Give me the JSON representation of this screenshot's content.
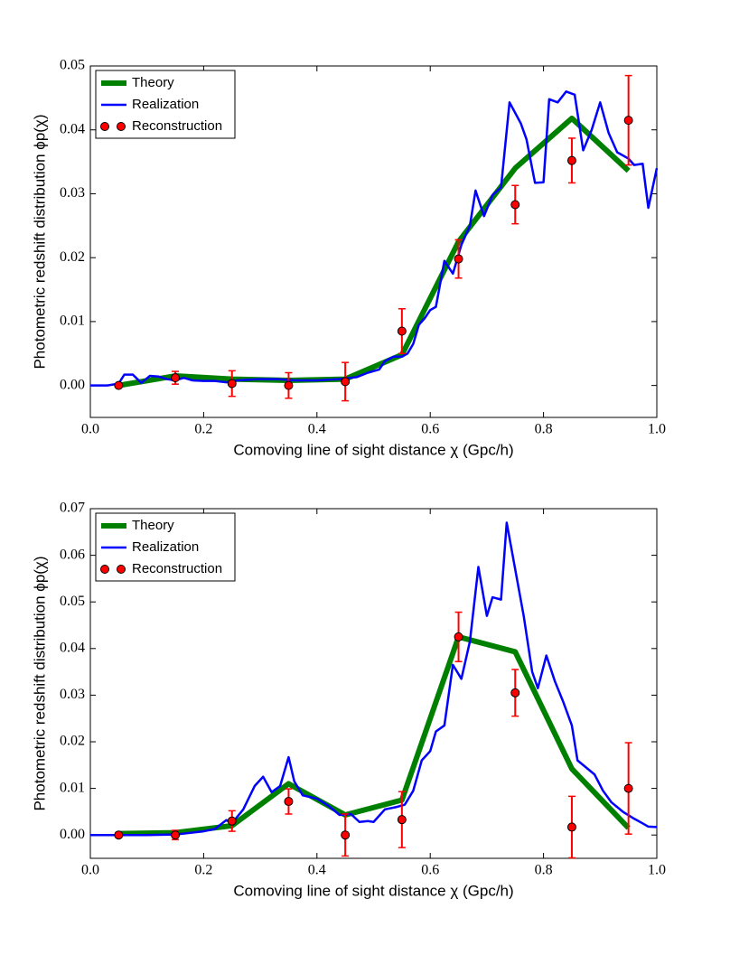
{
  "chart_data": [
    {
      "type": "line",
      "xlabel": "Comoving line of sight distance χ (Gpc/h)",
      "ylabel": "Photometric redshift distribution ϕp(χ)",
      "xlim": [
        0,
        1
      ],
      "ylim": [
        -0.005,
        0.05
      ],
      "xticks": [
        {
          "value": 0,
          "label": "0.0"
        },
        0.2,
        0.4,
        0.6,
        0.8,
        {
          "value": 1,
          "label": "1.0"
        }
      ],
      "yticks": [
        {
          "value": 0,
          "label": "0.00"
        },
        0.01,
        0.02,
        0.03,
        0.04,
        0.05
      ],
      "legend": "upper left",
      "series": [
        {
          "name": "Theory",
          "color": "#008000",
          "style": "line",
          "x": [
            0.05,
            0.15,
            0.25,
            0.35,
            0.45,
            0.55,
            0.65,
            0.75,
            0.85,
            0.95
          ],
          "values": [
            0,
            0.0015,
            0.001,
            0.0008,
            0.001,
            0.0048,
            0.0225,
            0.034,
            0.0418,
            0.0336
          ]
        },
        {
          "name": "Realization",
          "color": "#0000ff",
          "style": "line",
          "x": [
            0,
            0.03,
            0.05,
            0.06,
            0.075,
            0.09,
            0.105,
            0.12,
            0.135,
            0.15,
            0.165,
            0.18,
            0.2,
            0.22,
            0.24,
            0.26,
            0.28,
            0.3,
            0.33,
            0.36,
            0.4,
            0.44,
            0.47,
            0.49,
            0.51,
            0.52,
            0.535,
            0.55,
            0.56,
            0.57,
            0.58,
            0.59,
            0.6,
            0.61,
            0.625,
            0.64,
            0.655,
            0.67,
            0.68,
            0.695,
            0.71,
            0.725,
            0.74,
            0.76,
            0.77,
            0.785,
            0.8,
            0.81,
            0.825,
            0.84,
            0.855,
            0.87,
            0.885,
            0.9,
            0.915,
            0.93,
            0.95,
            0.96,
            0.975,
            0.985,
            1
          ],
          "values": [
            0,
            0,
            0.0003,
            0.0017,
            0.0017,
            0.0004,
            0.0015,
            0.0014,
            0.001,
            0.0008,
            0.0012,
            0.0008,
            0.0007,
            0.0007,
            0.0005,
            0.0008,
            0.0009,
            0.001,
            0.001,
            0.0008,
            0.0008,
            0.001,
            0.0013,
            0.002,
            0.0025,
            0.0038,
            0.0045,
            0.0045,
            0.005,
            0.0065,
            0.0095,
            0.0105,
            0.0118,
            0.0123,
            0.0195,
            0.0175,
            0.022,
            0.025,
            0.0305,
            0.0265,
            0.0298,
            0.031,
            0.0443,
            0.041,
            0.0385,
            0.0317,
            0.0318,
            0.0448,
            0.0443,
            0.046,
            0.0455,
            0.0368,
            0.04,
            0.0443,
            0.0395,
            0.0365,
            0.0355,
            0.0345,
            0.0347,
            0.0278,
            0.034
          ]
        },
        {
          "name": "Reconstruction",
          "color": "#ff0000",
          "style": "errorbar",
          "x": [
            0.05,
            0.15,
            0.25,
            0.35,
            0.45,
            0.55,
            0.65,
            0.75,
            0.85,
            0.95
          ],
          "values": [
            0,
            0.0012,
            0.0003,
            0,
            0.0006,
            0.0085,
            0.0198,
            0.0283,
            0.0352,
            0.0415
          ],
          "errors": [
            0.0002,
            0.001,
            0.002,
            0.002,
            0.003,
            0.0035,
            0.003,
            0.003,
            0.0035,
            0.007
          ]
        }
      ]
    },
    {
      "type": "line",
      "xlabel": "Comoving line of sight distance χ (Gpc/h)",
      "ylabel": "Photometric redshift distribution ϕp(χ)",
      "xlim": [
        0,
        1
      ],
      "ylim": [
        -0.005,
        0.07
      ],
      "xticks": [
        {
          "value": 0,
          "label": "0.0"
        },
        0.2,
        0.4,
        0.6,
        0.8,
        {
          "value": 1,
          "label": "1.0"
        }
      ],
      "yticks": [
        {
          "value": 0,
          "label": "0.00"
        },
        0.01,
        0.02,
        0.03,
        0.04,
        0.05,
        0.06,
        0.07
      ],
      "legend": "upper left",
      "series": [
        {
          "name": "Theory",
          "color": "#008000",
          "style": "line",
          "x": [
            0.05,
            0.15,
            0.25,
            0.35,
            0.45,
            0.55,
            0.65,
            0.75,
            0.85,
            0.95
          ],
          "values": [
            0.0003,
            0.0005,
            0.002,
            0.011,
            0.0043,
            0.0075,
            0.0425,
            0.0393,
            0.0142,
            0.0015
          ]
        },
        {
          "name": "Realization",
          "color": "#0000ff",
          "style": "line",
          "x": [
            0,
            0.05,
            0.1,
            0.15,
            0.2,
            0.22,
            0.24,
            0.25,
            0.27,
            0.29,
            0.305,
            0.32,
            0.335,
            0.35,
            0.36,
            0.375,
            0.4,
            0.42,
            0.44,
            0.46,
            0.475,
            0.49,
            0.5,
            0.52,
            0.54,
            0.555,
            0.57,
            0.585,
            0.6,
            0.61,
            0.625,
            0.64,
            0.655,
            0.67,
            0.685,
            0.7,
            0.71,
            0.725,
            0.735,
            0.75,
            0.765,
            0.78,
            0.79,
            0.805,
            0.82,
            0.835,
            0.85,
            0.86,
            0.875,
            0.89,
            0.905,
            0.92,
            0.94,
            0.96,
            0.975,
            0.985,
            1
          ],
          "values": [
            0,
            0,
            0,
            0.0001,
            0.0008,
            0.0013,
            0.0032,
            0.0025,
            0.0055,
            0.0105,
            0.0125,
            0.0092,
            0.0105,
            0.0167,
            0.0115,
            0.0085,
            0.0078,
            0.0063,
            0.0043,
            0.0045,
            0.0028,
            0.003,
            0.0028,
            0.0055,
            0.006,
            0.0065,
            0.0095,
            0.016,
            0.018,
            0.0222,
            0.0235,
            0.0365,
            0.0335,
            0.0415,
            0.0575,
            0.047,
            0.051,
            0.0505,
            0.067,
            0.057,
            0.047,
            0.035,
            0.0315,
            0.0385,
            0.033,
            0.0285,
            0.0235,
            0.016,
            0.0145,
            0.013,
            0.0095,
            0.007,
            0.005,
            0.0035,
            0.0025,
            0.0018,
            0.0017
          ]
        },
        {
          "name": "Reconstruction",
          "color": "#ff0000",
          "style": "errorbar",
          "x": [
            0.05,
            0.15,
            0.25,
            0.35,
            0.45,
            0.55,
            0.65,
            0.75,
            0.85,
            0.95
          ],
          "values": [
            0,
            0,
            0.003,
            0.0072,
            0,
            0.0033,
            0.0425,
            0.0305,
            0.0017,
            0.01
          ],
          "errors": [
            0.0005,
            0.001,
            0.0022,
            0.0027,
            0.0045,
            0.006,
            0.0053,
            0.005,
            0.0066,
            0.0098
          ]
        }
      ]
    }
  ]
}
